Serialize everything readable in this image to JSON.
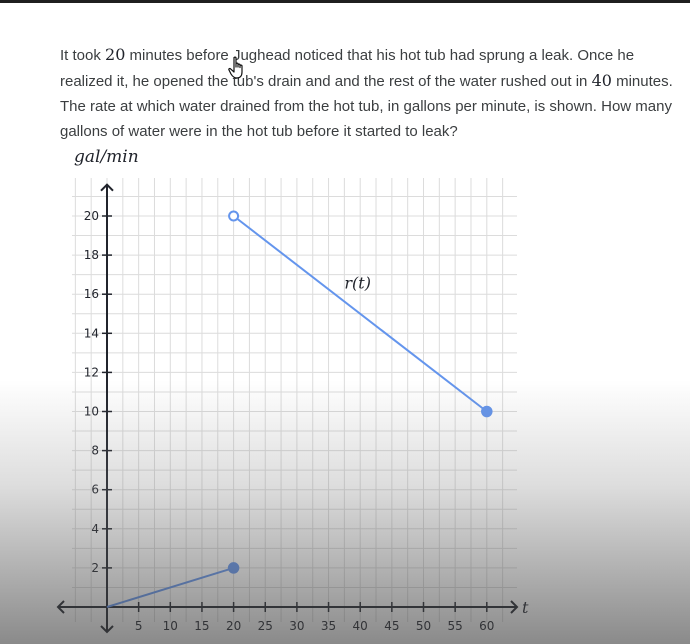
{
  "problem": {
    "seg1": "It took ",
    "num1": "20",
    "seg2": " minutes before Jughead noticed that his hot tub had sprung a leak. Once he realized it, he opened the tub's drain and and the rest of the water rushed out in ",
    "num2": "40",
    "seg3": " minutes. The rate at which water drained from the hot tub, in gallons per minute, is shown. How many gallons of water were in the hot tub before it started to leak?"
  },
  "chart_data": {
    "type": "line",
    "ylabel": "gal/min",
    "xlabel": "t",
    "x_ticks": [
      5,
      10,
      15,
      20,
      25,
      30,
      35,
      40,
      45,
      50,
      55,
      60
    ],
    "y_ticks": [
      2,
      4,
      6,
      8,
      10,
      12,
      14,
      16,
      18,
      20
    ],
    "xlim": [
      0,
      65
    ],
    "ylim": [
      0,
      21.5
    ],
    "grid": true,
    "series": [
      {
        "points": [
          [
            0,
            0
          ],
          [
            20,
            2
          ]
        ],
        "endpoints": [
          "none",
          "closed"
        ],
        "color": "#6495ed"
      },
      {
        "name": "r(t)",
        "points": [
          [
            20,
            20
          ],
          [
            60,
            10
          ]
        ],
        "endpoints": [
          "open",
          "closed"
        ],
        "color": "#6495ed"
      }
    ]
  },
  "colors": {
    "line": "#6495ed",
    "grid": "#dcdcdc",
    "axis": "#21242c",
    "text": "#3b3e40"
  },
  "icons": {
    "cursor": "hand-pointer-icon"
  }
}
